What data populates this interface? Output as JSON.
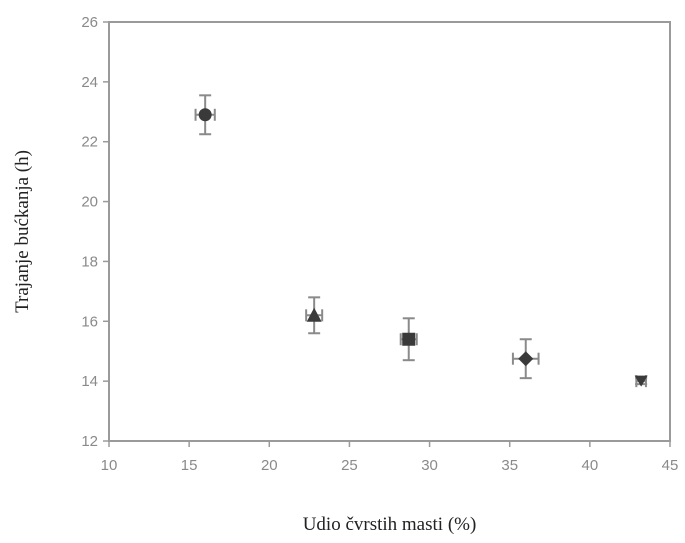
{
  "chart_data": {
    "type": "scatter",
    "title": "",
    "xlabel": "Udio čvrstih masti (%)",
    "ylabel": "Trajanje bućkanja (h)",
    "xlim": [
      10,
      45
    ],
    "ylim": [
      12,
      26
    ],
    "xticks": [
      10,
      15,
      20,
      25,
      30,
      35,
      40,
      45
    ],
    "yticks": [
      12,
      14,
      16,
      18,
      20,
      22,
      24,
      26
    ],
    "grid": false,
    "legend": "none",
    "points": [
      {
        "x": 16.0,
        "y": 22.9,
        "x_err": 0.6,
        "y_err": 0.65,
        "marker": "circle"
      },
      {
        "x": 22.8,
        "y": 16.2,
        "x_err": 0.5,
        "y_err": 0.6,
        "marker": "triangle-up"
      },
      {
        "x": 28.7,
        "y": 15.4,
        "x_err": 0.5,
        "y_err": 0.7,
        "marker": "square"
      },
      {
        "x": 36.0,
        "y": 14.75,
        "x_err": 0.8,
        "y_err": 0.65,
        "marker": "diamond"
      },
      {
        "x": 43.2,
        "y": 14.0,
        "x_err": 0.3,
        "y_err": 0.1,
        "marker": "triangle-down"
      }
    ],
    "colors": {
      "frame": "#9a9a9a",
      "marker": "#3a3a3a",
      "errorbar": "#8a8a8a",
      "tick_label": "#8a8a8a"
    }
  }
}
